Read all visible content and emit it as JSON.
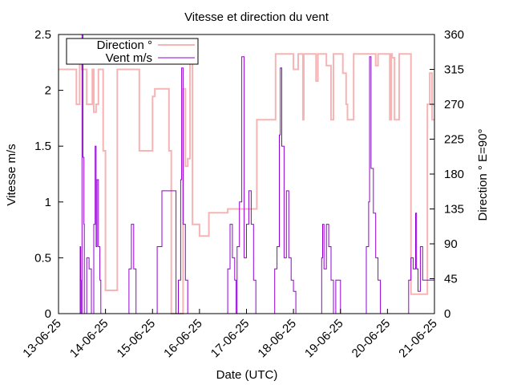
{
  "chart_data": {
    "type": "line",
    "title": "Vitesse et direction du vent",
    "xlabel": "Date (UTC)",
    "ylabel": "Vitesse m/s",
    "y2label": "Direction ° E=90°",
    "x_range": [
      "13-06-25",
      "21-06-25"
    ],
    "x_ticks": [
      "13-06-25",
      "14-06-25",
      "15-06-25",
      "16-06-25",
      "17-06-25",
      "18-06-25",
      "19-06-25",
      "20-06-25",
      "21-06-25"
    ],
    "ylim": [
      0,
      2.5
    ],
    "y_ticks": [
      "0",
      "0.5",
      "1",
      "1.5",
      "2",
      "2.5"
    ],
    "y2lim": [
      0,
      360
    ],
    "y2_ticks": [
      "0",
      "45",
      "90",
      "135",
      "180",
      "225",
      "270",
      "315",
      "360"
    ],
    "grid": false,
    "legend_position": "top-left",
    "series": [
      {
        "name": "Direction °",
        "axis": "y2",
        "color": "#f7b4b4",
        "x": [
          0,
          0.35,
          0.38,
          0.42,
          0.45,
          0.5,
          0.55,
          0.6,
          0.7,
          0.72,
          0.75,
          0.8,
          0.85,
          0.9,
          0.95,
          1.0,
          1.05,
          1.15,
          1.25,
          1.3,
          1.32,
          1.7,
          1.72,
          2.0,
          2.05,
          2.1,
          2.35,
          2.4,
          2.5,
          2.65,
          2.7,
          2.75,
          2.8,
          2.85,
          3.0,
          3.2,
          3.6,
          3.8,
          3.82,
          4.0,
          4.1,
          4.2,
          4.22,
          4.6,
          4.62,
          4.9,
          4.98,
          5.0,
          5.1,
          5.2,
          5.22,
          5.45,
          5.48,
          5.52,
          5.55,
          5.65,
          5.7,
          5.8,
          5.82,
          5.85,
          5.9,
          6.0,
          6.05,
          6.12,
          6.15,
          6.25,
          6.28,
          6.4,
          6.45,
          6.7,
          6.75,
          6.8,
          6.85,
          7.0,
          7.05,
          7.08,
          7.1,
          7.15,
          7.2,
          7.25,
          7.5,
          7.6,
          7.7,
          7.8,
          7.85,
          7.9,
          7.95,
          8.0
        ],
        "values": [
          315,
          315,
          270,
          270,
          330,
          315,
          315,
          270,
          270,
          315,
          260,
          270,
          315,
          315,
          210,
          30,
          30,
          30,
          315,
          315,
          315,
          315,
          210,
          280,
          290,
          290,
          210,
          0,
          0,
          290,
          190,
          200,
          325,
          115,
          100,
          130,
          135,
          135,
          135,
          135,
          135,
          135,
          250,
          250,
          335,
          335,
          335,
          315,
          335,
          250,
          335,
          335,
          300,
          335,
          335,
          335,
          320,
          250,
          250,
          335,
          335,
          335,
          310,
          270,
          250,
          250,
          335,
          335,
          335,
          335,
          320,
          335,
          335,
          335,
          250,
          335,
          330,
          250,
          250,
          335,
          25,
          25,
          25,
          25,
          270,
          310,
          250,
          250
        ]
      },
      {
        "name": "Vent m/s",
        "axis": "y",
        "color": "#9400d3",
        "x": [
          0.0,
          0.45,
          0.46,
          0.47,
          0.48,
          0.5,
          0.52,
          0.54,
          0.55,
          0.6,
          0.65,
          0.7,
          0.75,
          0.78,
          0.8,
          0.82,
          0.85,
          0.88,
          0.9,
          1.0,
          1.45,
          1.5,
          1.55,
          1.6,
          1.65,
          2.0,
          2.1,
          2.2,
          2.5,
          2.55,
          2.6,
          2.62,
          2.65,
          2.7,
          2.75,
          2.8,
          2.85,
          3.0,
          3.5,
          3.6,
          3.65,
          3.7,
          3.75,
          3.78,
          3.8,
          3.85,
          3.9,
          3.95,
          4.0,
          4.05,
          4.1,
          4.15,
          4.2,
          4.5,
          4.6,
          4.65,
          4.7,
          4.72,
          4.75,
          4.8,
          4.85,
          4.9,
          4.95,
          5.0,
          5.05,
          5.1,
          5.5,
          5.6,
          5.62,
          5.65,
          5.7,
          5.75,
          5.8,
          5.85,
          5.9,
          6.0,
          6.5,
          6.55,
          6.6,
          6.62,
          6.65,
          6.7,
          6.75,
          6.8,
          6.85,
          6.9,
          6.95,
          7.0,
          7.3,
          7.4,
          7.45,
          7.5,
          7.55,
          7.6,
          7.62,
          7.65,
          7.7,
          7.75,
          8.0
        ],
        "values": [
          0,
          0,
          0.6,
          0.3,
          0,
          2.5,
          1.4,
          0.8,
          0,
          0.5,
          0.4,
          0,
          0.8,
          1.5,
          0.6,
          1.2,
          0.6,
          0.3,
          0,
          0,
          0,
          0.4,
          0.8,
          0.4,
          0,
          0,
          0.6,
          1.1,
          0,
          0.3,
          1.2,
          2.2,
          0.8,
          0.3,
          0,
          0,
          0,
          0,
          0,
          0.4,
          0.8,
          0.5,
          0.3,
          0,
          0.6,
          1.0,
          2.3,
          0.5,
          0.8,
          1.1,
          0.8,
          0.3,
          0,
          0,
          0.4,
          0.6,
          1.6,
          2.2,
          1.5,
          0.5,
          1.1,
          0.5,
          0.3,
          0.2,
          0,
          0,
          0,
          0.5,
          0.8,
          0.4,
          0.8,
          0.6,
          0.3,
          0,
          0.3,
          0,
          0,
          0.6,
          1.0,
          2.3,
          1.3,
          0.9,
          0.5,
          0.3,
          0,
          0,
          0,
          0,
          0,
          0,
          0.3,
          0.5,
          0.4,
          0.9,
          0.4,
          0.2,
          0.6,
          0.3,
          0
        ]
      }
    ]
  }
}
